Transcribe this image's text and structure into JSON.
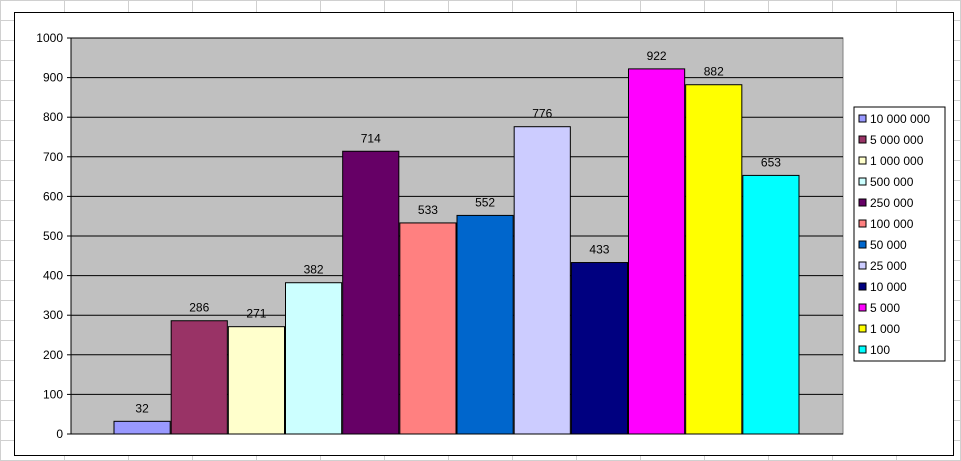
{
  "chart_data": {
    "type": "bar",
    "title": "",
    "xlabel": "",
    "ylabel": "",
    "ylim": [
      0,
      1000
    ],
    "yticks": [
      0,
      100,
      200,
      300,
      400,
      500,
      600,
      700,
      800,
      900,
      1000
    ],
    "grid": true,
    "legend_position": "right",
    "plot_background": "#c0c0c0",
    "series": [
      {
        "name": "10 000 000",
        "value": 32,
        "color": "#9999ff"
      },
      {
        "name": "5 000 000",
        "value": 286,
        "color": "#993366"
      },
      {
        "name": "1 000 000",
        "value": 271,
        "color": "#ffffcc"
      },
      {
        "name": "500 000",
        "value": 382,
        "color": "#ccffff"
      },
      {
        "name": "250 000",
        "value": 714,
        "color": "#660066"
      },
      {
        "name": "100 000",
        "value": 533,
        "color": "#ff8080"
      },
      {
        "name": "50 000",
        "value": 552,
        "color": "#0066cc"
      },
      {
        "name": "25 000",
        "value": 776,
        "color": "#ccccff"
      },
      {
        "name": "10 000",
        "value": 433,
        "color": "#000080"
      },
      {
        "name": "5 000",
        "value": 922,
        "color": "#ff00ff"
      },
      {
        "name": "1 000",
        "value": 882,
        "color": "#ffff00"
      },
      {
        "name": "100",
        "value": 653,
        "color": "#00ffff"
      }
    ]
  }
}
